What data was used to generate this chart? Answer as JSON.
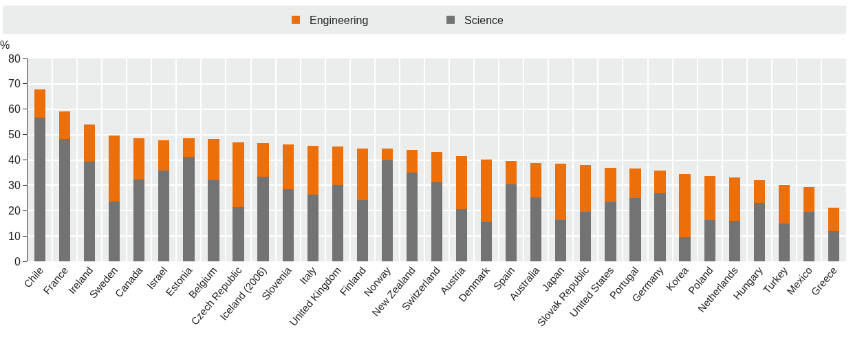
{
  "chart_data": {
    "type": "bar",
    "stacked": true,
    "ylabel": "%",
    "categories": [
      "Chile",
      "France",
      "Ireland",
      "Sweden",
      "Canada",
      "Israel",
      "Estonia",
      "Belgium",
      "Czech Republic",
      "Iceland (2006)",
      "Slovenia",
      "Italy",
      "United Kingdom",
      "Finland",
      "Norway",
      "New Zealand",
      "Switzerland",
      "Austria",
      "Denmark",
      "Spain",
      "Australia",
      "Japan",
      "Slovak Republic",
      "United States",
      "Portugal",
      "Germany",
      "Korea",
      "Poland",
      "Netherlands",
      "Hungary",
      "Turkey",
      "Mexico",
      "Greece"
    ],
    "series": [
      {
        "name": "Science",
        "color": "#737373",
        "values": [
          56.7,
          48.2,
          39.3,
          23.6,
          32.4,
          35.9,
          41.3,
          32.1,
          21.5,
          33.3,
          28.4,
          26.3,
          30.2,
          24.2,
          40.0,
          34.9,
          31.1,
          20.5,
          15.4,
          30.3,
          25.2,
          16.4,
          19.5,
          23.2,
          24.9,
          26.8,
          9.6,
          16.4,
          15.9,
          23.0,
          14.9,
          19.6,
          11.9
        ]
      },
      {
        "name": "Engineering",
        "color": "#ec6f0a",
        "values": [
          11.0,
          10.9,
          14.6,
          25.9,
          16.2,
          11.7,
          7.2,
          16.2,
          25.4,
          13.3,
          17.6,
          19.2,
          15.2,
          20.4,
          4.6,
          8.9,
          12.1,
          20.9,
          24.7,
          9.2,
          13.7,
          22.1,
          18.5,
          13.8,
          11.8,
          9.1,
          24.8,
          17.2,
          17.3,
          9.0,
          15.1,
          9.6,
          9.3
        ]
      }
    ],
    "ylim": [
      0,
      80
    ],
    "yticks": [
      0,
      10,
      20,
      30,
      40,
      50,
      60,
      70,
      80
    ],
    "grid": true,
    "legend": "top"
  }
}
